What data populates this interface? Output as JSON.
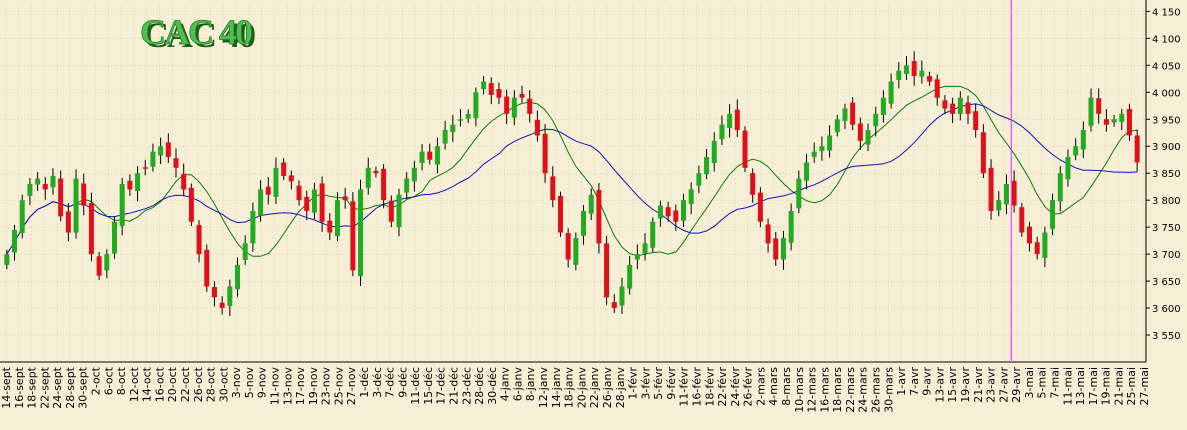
{
  "chart_data": {
    "type": "candlestick",
    "title": "CAC 40",
    "xlabel": "",
    "ylabel": "",
    "ylim": [
      3500,
      4160
    ],
    "grid": true,
    "y_ticks": [
      3550,
      3600,
      3650,
      3700,
      3750,
      3800,
      3850,
      3900,
      3950,
      4000,
      4050,
      4100,
      4150
    ],
    "y_tick_labels": [
      "3 550",
      "3 600",
      "3 650",
      "3 700",
      "3 750",
      "3 800",
      "3 850",
      "3 900",
      "3 950",
      "4 000",
      "4 050",
      "4 100",
      "4 150"
    ],
    "x_tick_labels": [
      "14-sept",
      "16-sept",
      "18-sept",
      "22-sept",
      "24-sept",
      "28-sept",
      "30-sept",
      "2-oct",
      "6-oct",
      "8-oct",
      "12-oct",
      "14-oct",
      "16-oct",
      "20-oct",
      "22-oct",
      "26-oct",
      "28-oct",
      "30-oct",
      "3-nov",
      "5-nov",
      "9-nov",
      "11-nov",
      "13-nov",
      "17-nov",
      "19-nov",
      "23-nov",
      "25-nov",
      "27-nov",
      "1-déc",
      "3-déc",
      "7-déc",
      "9-déc",
      "11-déc",
      "15-déc",
      "17-déc",
      "21-déc",
      "23-déc",
      "28-déc",
      "30-déc",
      "4-janv",
      "6-janv",
      "8-janv",
      "12-janv",
      "14-janv",
      "18-janv",
      "20-janv",
      "22-janv",
      "26-janv",
      "28-janv",
      "1-févr",
      "3-févr",
      "5-févr",
      "9-févr",
      "11-févr",
      "16-févr",
      "18-févr",
      "22-févr",
      "24-févr",
      "26-févr",
      "2-mars",
      "4-mars",
      "8-mars",
      "10-mars",
      "12-mars",
      "16-mars",
      "18-mars",
      "22-mars",
      "24-mars",
      "26-mars",
      "30-mars",
      "1-avr",
      "7-avr",
      "9-avr",
      "13-avr",
      "15-avr",
      "19-avr",
      "21-avr",
      "23-avr",
      "27-avr",
      "29-avr",
      "3-mai",
      "5-mai",
      "7-mai",
      "11-mai",
      "13-mai",
      "17-mai",
      "19-mai",
      "21-mai",
      "25-mai",
      "27-mai"
    ],
    "marker_line_label": "27-avr",
    "series": [
      {
        "name": "",
        "type": "candlestick",
        "color_up": "#22aa22",
        "color_down": "#e0101a",
        "close": [
          3700,
          3745,
          3800,
          3830,
          3840,
          3820,
          3845,
          3770,
          3740,
          3840,
          3790,
          3700,
          3660,
          3700,
          3760,
          3830,
          3820,
          3850,
          3860,
          3890,
          3900,
          3880,
          3860,
          3820,
          3760,
          3700,
          3640,
          3620,
          3600,
          3640,
          3680,
          3720,
          3780,
          3820,
          3810,
          3860,
          3845,
          3835,
          3800,
          3780,
          3820,
          3760,
          3740,
          3800,
          3800,
          3670,
          3820,
          3860,
          3850,
          3800,
          3760,
          3810,
          3840,
          3860,
          3890,
          3875,
          3900,
          3930,
          3940,
          3950,
          3960,
          4000,
          4020,
          3995,
          3990,
          3960,
          3990,
          3990,
          3960,
          3920,
          3850,
          3800,
          3740,
          3690,
          3730,
          3780,
          3810,
          3720,
          3620,
          3600,
          3640,
          3680,
          3700,
          3720,
          3760,
          3790,
          3770,
          3760,
          3800,
          3820,
          3850,
          3880,
          3910,
          3940,
          3960,
          3930,
          3860,
          3810,
          3760,
          3720,
          3690,
          3730,
          3780,
          3840,
          3870,
          3890,
          3900,
          3920,
          3950,
          3970,
          3940,
          3910,
          3930,
          3960,
          3990,
          4020,
          4040,
          4050,
          4030,
          4040,
          4020,
          3990,
          3970,
          3960,
          3990,
          3960,
          3930,
          3850,
          3780,
          3800,
          3830,
          3790,
          3740,
          3720,
          3700,
          3740,
          3800,
          3850,
          3880,
          3900,
          3930,
          3990,
          3960,
          3940,
          3950,
          3960,
          3920,
          3870
        ],
        "open": null
      }
    ]
  }
}
